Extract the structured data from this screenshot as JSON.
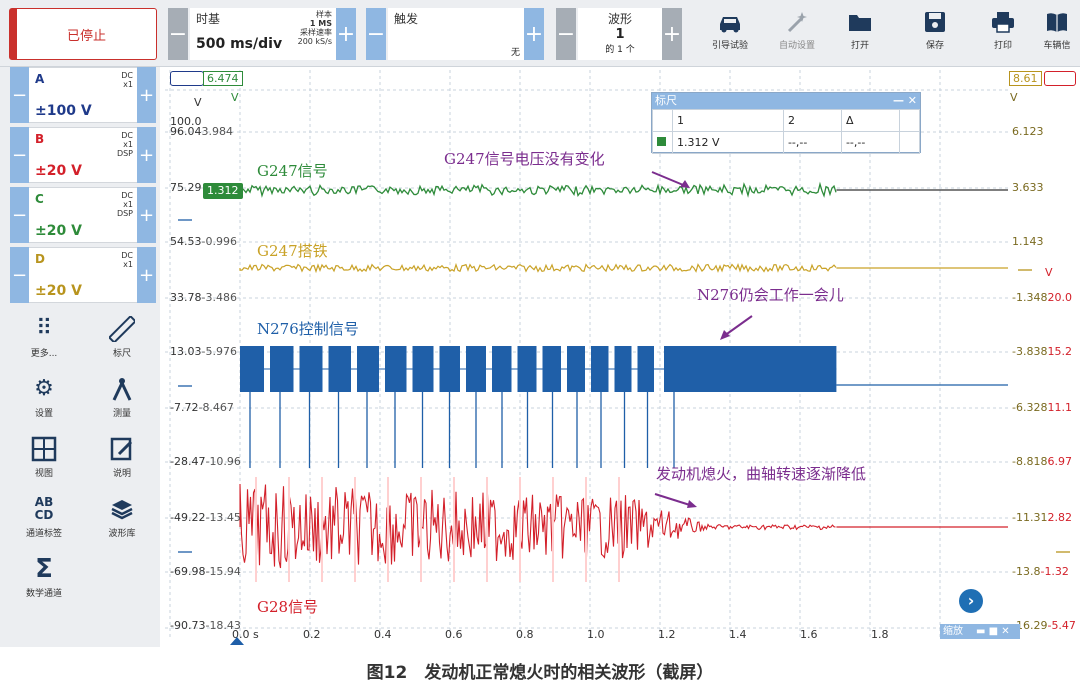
{
  "toolbar": {
    "stop_label": "已停止",
    "timebase_title": "时基",
    "timebase_value": "500 ms/div",
    "samples_label": "样本",
    "samples_value": "1 MS",
    "sample_rate_label": "采样速率",
    "sample_rate_value": "200 kS/s",
    "trigger_title": "触发",
    "trigger_value": "无",
    "waveform_title": "波形",
    "waveform_value": "1",
    "waveform_of": "的 1 个",
    "buttons": [
      {
        "label": "引导试验",
        "icon": "car-icon"
      },
      {
        "label": "自动设置",
        "icon": "wand-icon"
      },
      {
        "label": "打开",
        "icon": "folder-icon"
      },
      {
        "label": "保存",
        "icon": "save-icon"
      },
      {
        "label": "打印",
        "icon": "printer-icon"
      },
      {
        "label": "车辆信",
        "icon": "book-icon"
      }
    ]
  },
  "channels": [
    {
      "name": "A",
      "coupling": "DC",
      "probe": "x1",
      "extra": "",
      "range": "±100 V",
      "color": "#1f3a8a"
    },
    {
      "name": "B",
      "coupling": "DC",
      "probe": "x1",
      "extra": "DSP",
      "range": "±20 V",
      "color": "#d3202a"
    },
    {
      "name": "C",
      "coupling": "DC",
      "probe": "x1",
      "extra": "DSP",
      "range": "±20 V",
      "color": "#2e8b3a"
    },
    {
      "name": "D",
      "coupling": "DC",
      "probe": "x1",
      "extra": "",
      "range": "±20 V",
      "color": "#b8941e"
    }
  ],
  "tools": [
    {
      "label": "更多...",
      "icon": "grid-dots-icon"
    },
    {
      "label": "标尺",
      "icon": "ruler-icon"
    },
    {
      "label": "设置",
      "icon": "gear-icon"
    },
    {
      "label": "测量",
      "icon": "compass-icon"
    },
    {
      "label": "视图",
      "icon": "view-grid-icon"
    },
    {
      "label": "说明",
      "icon": "note-icon"
    },
    {
      "label": "通道标签",
      "icon": "abcd-icon"
    },
    {
      "label": "波形库",
      "icon": "library-icon"
    },
    {
      "label": "数学通道",
      "icon": "sigma-icon"
    }
  ],
  "plot": {
    "left_top_box": "6.474",
    "left_unit_a": "V",
    "left_unit_b": "V",
    "left_100": "100.0",
    "left_axis": [
      {
        "a": "96.04",
        "b": "3.984"
      },
      {
        "a": "75.29",
        "b": "1.312"
      },
      {
        "a": "54.53",
        "b": "-0.996"
      },
      {
        "a": "33.78",
        "b": "-3.486"
      },
      {
        "a": "13.03",
        "b": "-5.976"
      },
      {
        "a": "-7.72",
        "b": "-8.467"
      },
      {
        "a": "-28.47",
        "b": "-10.96"
      },
      {
        "a": "-49.22",
        "b": "-13.45"
      },
      {
        "a": "-69.98",
        "b": "-15.94"
      },
      {
        "a": "-90.73",
        "b": "-18.43"
      }
    ],
    "right_top_box": "8.61",
    "right_unit": "V",
    "right_axis_1": [
      "6.123",
      "3.633",
      "1.143",
      "-1.348",
      "-3.838",
      "-6.328",
      "-8.818",
      "-11.31",
      "-13.8",
      "-16.29"
    ],
    "right_axis_2": [
      "",
      "",
      "",
      "20.0",
      "15.2",
      "11.1",
      "6.97",
      "2.82",
      "-1.32",
      "-5.47"
    ],
    "right_v2": "V",
    "x_ticks": [
      "0.0 s",
      "0.2",
      "0.4",
      "0.6",
      "0.8",
      "1.0",
      "1.2",
      "1.4",
      "1.6",
      "1.8"
    ],
    "annotations": {
      "g247_signal": "G247信号",
      "g247_note": "G247信号电压没有变化",
      "g247_ground": "G247搭铁",
      "n276_note": "N276仍会工作一会儿",
      "n276_signal": "N276控制信号",
      "g28_note": "发动机熄火，曲轴转速逐渐降低",
      "g28_signal": "G28信号"
    },
    "zoom_label": "缩放"
  },
  "ruler": {
    "title": "标尺",
    "col1": "1",
    "col2": "2",
    "col3": "Δ",
    "val1": "1.312 V",
    "val2": "--,--",
    "val3": "--,--"
  },
  "caption": "图12　发动机正常熄火时的相关波形（截屏）",
  "chart_data": {
    "type": "line",
    "x_unit": "s",
    "xlim": [
      0.0,
      2.0
    ],
    "series": [
      {
        "name": "G247信号",
        "color": "#2e8b3a",
        "description_level_V": 1.312,
        "active_until": 1.68
      },
      {
        "name": "G247搭铁",
        "color": "#c9a227",
        "active_until": 1.68
      },
      {
        "name": "N276控制信号",
        "color": "#1f5fa8",
        "active_until": 1.68
      },
      {
        "name": "G28信号",
        "color": "#d3202a",
        "active_until": 1.68
      }
    ]
  }
}
